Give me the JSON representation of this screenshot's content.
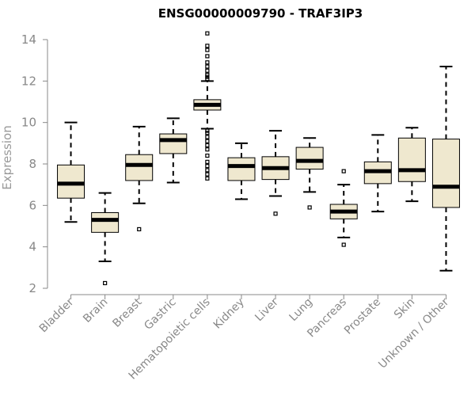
{
  "chart_data": {
    "type": "boxplot",
    "title": "ENSG00000009790 - TRAF3IP3",
    "xlabel": "",
    "ylabel": "Expression",
    "ylim": [
      2,
      14
    ],
    "yticks": [
      2,
      4,
      6,
      8,
      10,
      12,
      14
    ],
    "categories": [
      "Bladder",
      "Brain",
      "Breast",
      "Gastric",
      "Hematopoietic cells",
      "Kidney",
      "Liver",
      "Lung",
      "Pancreas",
      "Prostate",
      "Skin",
      "Unknown / Other"
    ],
    "boxes": [
      {
        "name": "Bladder",
        "whisker_low": 5.2,
        "q1": 6.35,
        "median": 7.05,
        "q3": 7.95,
        "whisker_high": 10.0,
        "outliers": []
      },
      {
        "name": "Brain",
        "whisker_low": 3.3,
        "q1": 4.7,
        "median": 5.3,
        "q3": 5.65,
        "whisker_high": 6.6,
        "outliers": [
          2.25
        ]
      },
      {
        "name": "Breast",
        "whisker_low": 6.1,
        "q1": 7.2,
        "median": 7.95,
        "q3": 8.45,
        "whisker_high": 9.8,
        "outliers": [
          4.85
        ]
      },
      {
        "name": "Gastric",
        "whisker_low": 7.1,
        "q1": 8.5,
        "median": 9.15,
        "q3": 9.45,
        "whisker_high": 10.2,
        "outliers": []
      },
      {
        "name": "Hematopoietic cells",
        "whisker_low": 9.7,
        "q1": 10.6,
        "median": 10.85,
        "q3": 11.1,
        "whisker_high": 12.0,
        "outliers": [
          7.3,
          7.5,
          7.7,
          7.9,
          8.1,
          8.4,
          8.7,
          8.9,
          9.1,
          9.3,
          9.5,
          9.6,
          12.1,
          12.2,
          12.3,
          12.5,
          12.7,
          12.9,
          13.2,
          13.5,
          13.7,
          14.3
        ]
      },
      {
        "name": "Kidney",
        "whisker_low": 6.3,
        "q1": 7.2,
        "median": 7.9,
        "q3": 8.3,
        "whisker_high": 9.0,
        "outliers": []
      },
      {
        "name": "Liver",
        "whisker_low": 6.45,
        "q1": 7.25,
        "median": 7.8,
        "q3": 8.35,
        "whisker_high": 9.6,
        "outliers": [
          5.6
        ]
      },
      {
        "name": "Lung",
        "whisker_low": 6.65,
        "q1": 7.75,
        "median": 8.15,
        "q3": 8.8,
        "whisker_high": 9.25,
        "outliers": [
          5.9
        ]
      },
      {
        "name": "Pancreas",
        "whisker_low": 4.45,
        "q1": 5.35,
        "median": 5.7,
        "q3": 6.05,
        "whisker_high": 7.0,
        "outliers": [
          4.1,
          7.65
        ]
      },
      {
        "name": "Prostate",
        "whisker_low": 5.7,
        "q1": 7.05,
        "median": 7.65,
        "q3": 8.1,
        "whisker_high": 9.4,
        "outliers": []
      },
      {
        "name": "Skin",
        "whisker_low": 6.2,
        "q1": 7.15,
        "median": 7.7,
        "q3": 9.25,
        "whisker_high": 9.75,
        "outliers": []
      },
      {
        "name": "Unknown / Other",
        "whisker_low": 2.85,
        "q1": 5.9,
        "median": 6.9,
        "q3": 9.2,
        "whisker_high": 12.7,
        "outliers": []
      }
    ],
    "box_fill": "#efe8cf",
    "box_stroke": "#000000",
    "grid": false,
    "legend": "none"
  }
}
